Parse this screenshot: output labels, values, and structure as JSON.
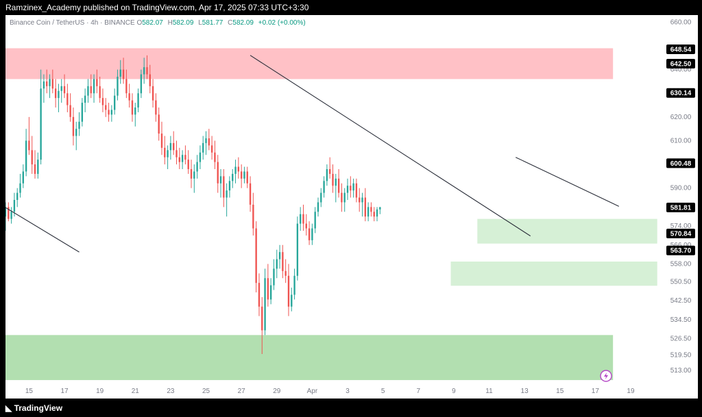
{
  "header": {
    "publisher_line": "Ramzinex_Academy published on TradingView.com, Apr 17, 2025 07:33 UTC+3:30"
  },
  "legend": {
    "symbol": "Binance Coin / TetherUS · 4h · BINANCE",
    "o_label": "O",
    "o_value": "582.07",
    "h_label": "H",
    "h_value": "582.09",
    "l_label": "L",
    "l_value": "581.77",
    "c_label": "C",
    "c_value": "582.09",
    "change": "+0.02 (+0.00%)"
  },
  "footer": {
    "brand": "TradingView"
  },
  "colors": {
    "up": "#26a69a",
    "down": "#ef5350",
    "supply_zone": "#ffc1c6",
    "demand_zone_light": "#d6f0d6",
    "demand_zone_strong": "#b2dfb0",
    "trendline": "#2a2e39",
    "badge_bg": "#000000",
    "badge_text": "#ffffff"
  },
  "chart_data": {
    "type": "candlestick",
    "y_axis": {
      "ylim": [
        507,
        663
      ],
      "ticks": [
        "660.00",
        "640.00",
        "630.00",
        "620.00",
        "610.00",
        "600.00",
        "590.00",
        "574.00",
        "566.00",
        "558.00",
        "550.50",
        "542.50",
        "534.50",
        "526.50",
        "519.50",
        "513.00"
      ],
      "tick_values": [
        660,
        640,
        630,
        620,
        610,
        600,
        590,
        574,
        566,
        558,
        550.5,
        542.5,
        534.5,
        526.5,
        519.5,
        513
      ]
    },
    "price_badges": [
      {
        "label": "648.54",
        "value": 648.54
      },
      {
        "label": "642.50",
        "value": 642.5
      },
      {
        "label": "630.14",
        "value": 630.14
      },
      {
        "label": "600.48",
        "value": 600.48
      },
      {
        "label": "581.81",
        "value": 581.81
      },
      {
        "label": "570.84",
        "value": 570.84
      },
      {
        "label": "563.70",
        "value": 563.7
      }
    ],
    "x_axis": {
      "ticks": [
        "15",
        "17",
        "19",
        "21",
        "23",
        "25",
        "27",
        "29",
        "Apr",
        "3",
        "5",
        "7",
        "9",
        "11",
        "13",
        "15",
        "17",
        "19"
      ],
      "tick_index": [
        18,
        30,
        42,
        54,
        66,
        78,
        90,
        102,
        114,
        126,
        138,
        150,
        162,
        174,
        186,
        198,
        210,
        222
      ],
      "xlim": [
        10,
        232
      ]
    },
    "zones": [
      {
        "from_index": 10,
        "to_index": 216,
        "y_low": 636.0,
        "y_high": 649.0,
        "kind": "supply_zone"
      },
      {
        "from_index": 170,
        "to_index": 231,
        "y_low": 566.6,
        "y_high": 577.0,
        "kind": "demand_zone_light"
      },
      {
        "from_index": 161,
        "to_index": 231,
        "y_low": 548.8,
        "y_high": 559.0,
        "kind": "demand_zone_light"
      },
      {
        "from_index": 10,
        "to_index": 216,
        "y_low": 509.0,
        "y_high": 528.0,
        "kind": "demand_zone_strong"
      }
    ],
    "trendlines": [
      {
        "x1": 10,
        "y1": 581.8,
        "x2": 35,
        "y2": 563.0
      },
      {
        "x1": 93,
        "y1": 646.0,
        "x2": 188,
        "y2": 569.8
      },
      {
        "x1": 183,
        "y1": 603.0,
        "x2": 218,
        "y2": 582.3
      }
    ],
    "candles": [
      {
        "x": 10,
        "o": 578,
        "h": 584,
        "l": 572,
        "c": 582
      },
      {
        "x": 11,
        "o": 582,
        "h": 584,
        "l": 576,
        "c": 577
      },
      {
        "x": 12,
        "o": 577,
        "h": 582,
        "l": 575,
        "c": 580
      },
      {
        "x": 13,
        "o": 580,
        "h": 588,
        "l": 578,
        "c": 585
      },
      {
        "x": 14,
        "o": 585,
        "h": 590,
        "l": 582,
        "c": 588
      },
      {
        "x": 15,
        "o": 588,
        "h": 596,
        "l": 586,
        "c": 592
      },
      {
        "x": 16,
        "o": 592,
        "h": 600,
        "l": 590,
        "c": 597
      },
      {
        "x": 17,
        "o": 597,
        "h": 615,
        "l": 595,
        "c": 610
      },
      {
        "x": 18,
        "o": 610,
        "h": 620,
        "l": 604,
        "c": 606
      },
      {
        "x": 19,
        "o": 606,
        "h": 612,
        "l": 596,
        "c": 600
      },
      {
        "x": 20,
        "o": 600,
        "h": 606,
        "l": 594,
        "c": 596
      },
      {
        "x": 21,
        "o": 596,
        "h": 605,
        "l": 594,
        "c": 602
      },
      {
        "x": 22,
        "o": 602,
        "h": 640,
        "l": 600,
        "c": 632
      },
      {
        "x": 23,
        "o": 632,
        "h": 638,
        "l": 626,
        "c": 635
      },
      {
        "x": 24,
        "o": 635,
        "h": 640,
        "l": 630,
        "c": 633
      },
      {
        "x": 25,
        "o": 633,
        "h": 638,
        "l": 628,
        "c": 636
      },
      {
        "x": 26,
        "o": 636,
        "h": 640,
        "l": 630,
        "c": 632
      },
      {
        "x": 27,
        "o": 632,
        "h": 636,
        "l": 624,
        "c": 628
      },
      {
        "x": 28,
        "o": 628,
        "h": 634,
        "l": 622,
        "c": 631
      },
      {
        "x": 29,
        "o": 631,
        "h": 636,
        "l": 626,
        "c": 633
      },
      {
        "x": 30,
        "o": 633,
        "h": 638,
        "l": 628,
        "c": 630
      },
      {
        "x": 31,
        "o": 630,
        "h": 634,
        "l": 622,
        "c": 625
      },
      {
        "x": 32,
        "o": 625,
        "h": 630,
        "l": 618,
        "c": 620
      },
      {
        "x": 33,
        "o": 620,
        "h": 624,
        "l": 608,
        "c": 612
      },
      {
        "x": 34,
        "o": 612,
        "h": 618,
        "l": 606,
        "c": 615
      },
      {
        "x": 35,
        "o": 615,
        "h": 622,
        "l": 612,
        "c": 618
      },
      {
        "x": 36,
        "o": 618,
        "h": 628,
        "l": 616,
        "c": 626
      },
      {
        "x": 37,
        "o": 626,
        "h": 632,
        "l": 622,
        "c": 629
      },
      {
        "x": 38,
        "o": 629,
        "h": 636,
        "l": 626,
        "c": 633
      },
      {
        "x": 39,
        "o": 633,
        "h": 638,
        "l": 628,
        "c": 630
      },
      {
        "x": 40,
        "o": 630,
        "h": 638,
        "l": 626,
        "c": 636
      },
      {
        "x": 41,
        "o": 636,
        "h": 640,
        "l": 630,
        "c": 633
      },
      {
        "x": 42,
        "o": 633,
        "h": 637,
        "l": 626,
        "c": 628
      },
      {
        "x": 43,
        "o": 628,
        "h": 632,
        "l": 622,
        "c": 625
      },
      {
        "x": 44,
        "o": 625,
        "h": 628,
        "l": 620,
        "c": 623
      },
      {
        "x": 45,
        "o": 623,
        "h": 626,
        "l": 618,
        "c": 621
      },
      {
        "x": 46,
        "o": 621,
        "h": 625,
        "l": 618,
        "c": 623
      },
      {
        "x": 47,
        "o": 623,
        "h": 632,
        "l": 621,
        "c": 629
      },
      {
        "x": 48,
        "o": 629,
        "h": 640,
        "l": 627,
        "c": 637
      },
      {
        "x": 49,
        "o": 637,
        "h": 644,
        "l": 634,
        "c": 640
      },
      {
        "x": 50,
        "o": 640,
        "h": 645,
        "l": 634,
        "c": 636
      },
      {
        "x": 51,
        "o": 636,
        "h": 640,
        "l": 628,
        "c": 630
      },
      {
        "x": 52,
        "o": 630,
        "h": 634,
        "l": 624,
        "c": 627
      },
      {
        "x": 53,
        "o": 627,
        "h": 630,
        "l": 618,
        "c": 621
      },
      {
        "x": 54,
        "o": 621,
        "h": 626,
        "l": 616,
        "c": 624
      },
      {
        "x": 55,
        "o": 624,
        "h": 632,
        "l": 622,
        "c": 630
      },
      {
        "x": 56,
        "o": 630,
        "h": 640,
        "l": 628,
        "c": 638
      },
      {
        "x": 57,
        "o": 638,
        "h": 645,
        "l": 634,
        "c": 641
      },
      {
        "x": 58,
        "o": 641,
        "h": 646,
        "l": 636,
        "c": 638
      },
      {
        "x": 59,
        "o": 638,
        "h": 642,
        "l": 630,
        "c": 633
      },
      {
        "x": 60,
        "o": 633,
        "h": 636,
        "l": 624,
        "c": 627
      },
      {
        "x": 61,
        "o": 627,
        "h": 630,
        "l": 618,
        "c": 621
      },
      {
        "x": 62,
        "o": 621,
        "h": 624,
        "l": 610,
        "c": 613
      },
      {
        "x": 63,
        "o": 613,
        "h": 618,
        "l": 604,
        "c": 607
      },
      {
        "x": 64,
        "o": 607,
        "h": 612,
        "l": 600,
        "c": 603
      },
      {
        "x": 65,
        "o": 603,
        "h": 608,
        "l": 598,
        "c": 606
      },
      {
        "x": 66,
        "o": 606,
        "h": 612,
        "l": 602,
        "c": 609
      },
      {
        "x": 67,
        "o": 609,
        "h": 614,
        "l": 604,
        "c": 606
      },
      {
        "x": 68,
        "o": 606,
        "h": 610,
        "l": 600,
        "c": 603
      },
      {
        "x": 69,
        "o": 603,
        "h": 607,
        "l": 598,
        "c": 601
      },
      {
        "x": 70,
        "o": 601,
        "h": 606,
        "l": 598,
        "c": 604
      },
      {
        "x": 71,
        "o": 604,
        "h": 608,
        "l": 600,
        "c": 602
      },
      {
        "x": 72,
        "o": 602,
        "h": 606,
        "l": 596,
        "c": 598
      },
      {
        "x": 73,
        "o": 598,
        "h": 602,
        "l": 590,
        "c": 594
      },
      {
        "x": 74,
        "o": 594,
        "h": 600,
        "l": 588,
        "c": 597
      },
      {
        "x": 75,
        "o": 597,
        "h": 604,
        "l": 594,
        "c": 601
      },
      {
        "x": 76,
        "o": 601,
        "h": 608,
        "l": 598,
        "c": 605
      },
      {
        "x": 77,
        "o": 605,
        "h": 612,
        "l": 602,
        "c": 609
      },
      {
        "x": 78,
        "o": 609,
        "h": 614,
        "l": 604,
        "c": 611
      },
      {
        "x": 79,
        "o": 611,
        "h": 615,
        "l": 606,
        "c": 608
      },
      {
        "x": 80,
        "o": 608,
        "h": 612,
        "l": 602,
        "c": 605
      },
      {
        "x": 81,
        "o": 605,
        "h": 610,
        "l": 598,
        "c": 601
      },
      {
        "x": 82,
        "o": 601,
        "h": 604,
        "l": 588,
        "c": 592
      },
      {
        "x": 83,
        "o": 592,
        "h": 598,
        "l": 586,
        "c": 595
      },
      {
        "x": 84,
        "o": 595,
        "h": 598,
        "l": 582,
        "c": 586
      },
      {
        "x": 85,
        "o": 586,
        "h": 592,
        "l": 578,
        "c": 589
      },
      {
        "x": 86,
        "o": 589,
        "h": 595,
        "l": 586,
        "c": 593
      },
      {
        "x": 87,
        "o": 593,
        "h": 598,
        "l": 590,
        "c": 596
      },
      {
        "x": 88,
        "o": 596,
        "h": 602,
        "l": 592,
        "c": 599
      },
      {
        "x": 89,
        "o": 599,
        "h": 603,
        "l": 594,
        "c": 597
      },
      {
        "x": 90,
        "o": 597,
        "h": 600,
        "l": 590,
        "c": 594
      },
      {
        "x": 91,
        "o": 594,
        "h": 599,
        "l": 592,
        "c": 597
      },
      {
        "x": 92,
        "o": 597,
        "h": 599,
        "l": 590,
        "c": 592
      },
      {
        "x": 93,
        "o": 592,
        "h": 595,
        "l": 580,
        "c": 583
      },
      {
        "x": 94,
        "o": 583,
        "h": 588,
        "l": 570,
        "c": 573
      },
      {
        "x": 95,
        "o": 573,
        "h": 576,
        "l": 546,
        "c": 550
      },
      {
        "x": 96,
        "o": 550,
        "h": 554,
        "l": 536,
        "c": 540
      },
      {
        "x": 97,
        "o": 540,
        "h": 544,
        "l": 520,
        "c": 530
      },
      {
        "x": 98,
        "o": 530,
        "h": 556,
        "l": 528,
        "c": 552
      },
      {
        "x": 99,
        "o": 552,
        "h": 558,
        "l": 540,
        "c": 543
      },
      {
        "x": 100,
        "o": 543,
        "h": 552,
        "l": 541,
        "c": 549
      },
      {
        "x": 101,
        "o": 549,
        "h": 560,
        "l": 547,
        "c": 556
      },
      {
        "x": 102,
        "o": 556,
        "h": 564,
        "l": 552,
        "c": 560
      },
      {
        "x": 103,
        "o": 560,
        "h": 566,
        "l": 556,
        "c": 563
      },
      {
        "x": 104,
        "o": 563,
        "h": 566,
        "l": 552,
        "c": 555
      },
      {
        "x": 105,
        "o": 555,
        "h": 560,
        "l": 550,
        "c": 553
      },
      {
        "x": 106,
        "o": 553,
        "h": 558,
        "l": 536,
        "c": 540
      },
      {
        "x": 107,
        "o": 540,
        "h": 548,
        "l": 538,
        "c": 545
      },
      {
        "x": 108,
        "o": 545,
        "h": 556,
        "l": 543,
        "c": 553
      },
      {
        "x": 109,
        "o": 553,
        "h": 578,
        "l": 551,
        "c": 575
      },
      {
        "x": 110,
        "o": 575,
        "h": 582,
        "l": 572,
        "c": 579
      },
      {
        "x": 111,
        "o": 579,
        "h": 583,
        "l": 572,
        "c": 575
      },
      {
        "x": 112,
        "o": 575,
        "h": 579,
        "l": 570,
        "c": 573
      },
      {
        "x": 113,
        "o": 573,
        "h": 576,
        "l": 566,
        "c": 568
      },
      {
        "x": 114,
        "o": 568,
        "h": 575,
        "l": 566,
        "c": 573
      },
      {
        "x": 115,
        "o": 573,
        "h": 582,
        "l": 571,
        "c": 580
      },
      {
        "x": 116,
        "o": 580,
        "h": 586,
        "l": 578,
        "c": 584
      },
      {
        "x": 117,
        "o": 584,
        "h": 590,
        "l": 582,
        "c": 588
      },
      {
        "x": 118,
        "o": 588,
        "h": 595,
        "l": 586,
        "c": 593
      },
      {
        "x": 119,
        "o": 593,
        "h": 600,
        "l": 591,
        "c": 598
      },
      {
        "x": 120,
        "o": 598,
        "h": 603,
        "l": 594,
        "c": 596
      },
      {
        "x": 121,
        "o": 596,
        "h": 600,
        "l": 588,
        "c": 591
      },
      {
        "x": 122,
        "o": 591,
        "h": 596,
        "l": 584,
        "c": 594
      },
      {
        "x": 123,
        "o": 594,
        "h": 598,
        "l": 586,
        "c": 588
      },
      {
        "x": 124,
        "o": 588,
        "h": 592,
        "l": 580,
        "c": 584
      },
      {
        "x": 125,
        "o": 584,
        "h": 590,
        "l": 580,
        "c": 588
      },
      {
        "x": 126,
        "o": 588,
        "h": 594,
        "l": 585,
        "c": 591
      },
      {
        "x": 127,
        "o": 591,
        "h": 595,
        "l": 586,
        "c": 589
      },
      {
        "x": 128,
        "o": 589,
        "h": 594,
        "l": 586,
        "c": 592
      },
      {
        "x": 129,
        "o": 592,
        "h": 594,
        "l": 584,
        "c": 586
      },
      {
        "x": 130,
        "o": 586,
        "h": 590,
        "l": 580,
        "c": 584
      },
      {
        "x": 131,
        "o": 584,
        "h": 588,
        "l": 578,
        "c": 586
      },
      {
        "x": 132,
        "o": 586,
        "h": 590,
        "l": 576,
        "c": 578
      },
      {
        "x": 133,
        "o": 578,
        "h": 584,
        "l": 576,
        "c": 582
      },
      {
        "x": 134,
        "o": 582,
        "h": 584,
        "l": 578,
        "c": 580
      },
      {
        "x": 135,
        "o": 580,
        "h": 582,
        "l": 576,
        "c": 578
      },
      {
        "x": 136,
        "o": 578,
        "h": 582,
        "l": 576,
        "c": 581
      },
      {
        "x": 137,
        "o": 581,
        "h": 582,
        "l": 579,
        "c": 582
      }
    ]
  }
}
